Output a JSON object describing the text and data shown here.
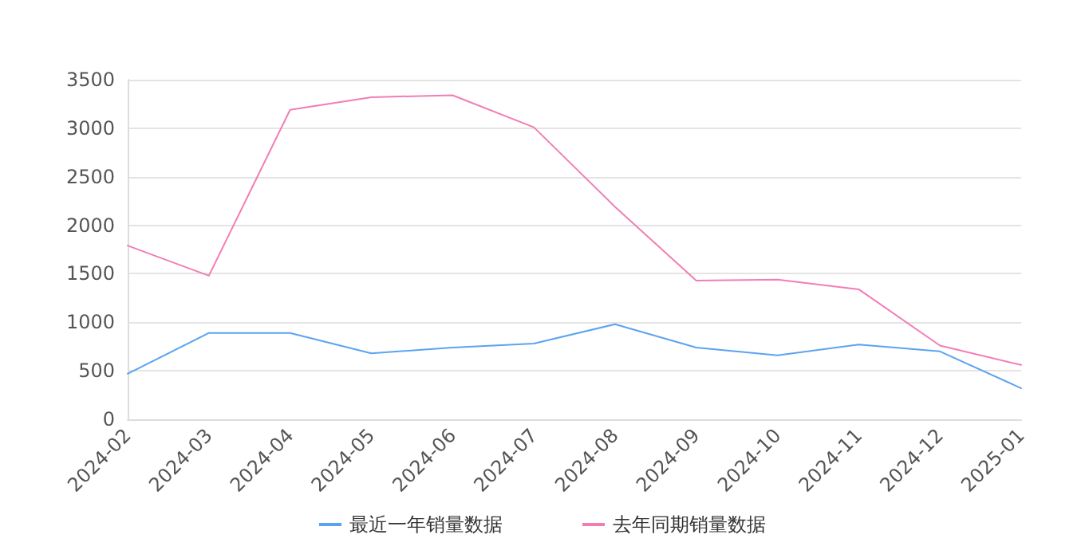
{
  "chart_data": {
    "type": "line",
    "categories": [
      "2024-02",
      "2024-03",
      "2024-04",
      "2024-05",
      "2024-06",
      "2024-07",
      "2024-08",
      "2024-09",
      "2024-10",
      "2024-11",
      "2024-12",
      "2025-01"
    ],
    "series": [
      {
        "name": "最近一年销量数据",
        "color": "#5aa3f0",
        "values": [
          470,
          890,
          890,
          680,
          740,
          780,
          980,
          740,
          660,
          770,
          700,
          320
        ]
      },
      {
        "name": "去年同期销量数据",
        "color": "#f27db5",
        "values": [
          1790,
          1480,
          3190,
          3320,
          3340,
          3010,
          2190,
          1430,
          1440,
          1340,
          760,
          560
        ]
      }
    ],
    "ylim": [
      0,
      3500
    ],
    "yticks": [
      0,
      500,
      1000,
      1500,
      2000,
      2500,
      3000,
      3500
    ],
    "grid": "y",
    "legend": "bottom",
    "marker": "none",
    "line_style": "solid"
  }
}
